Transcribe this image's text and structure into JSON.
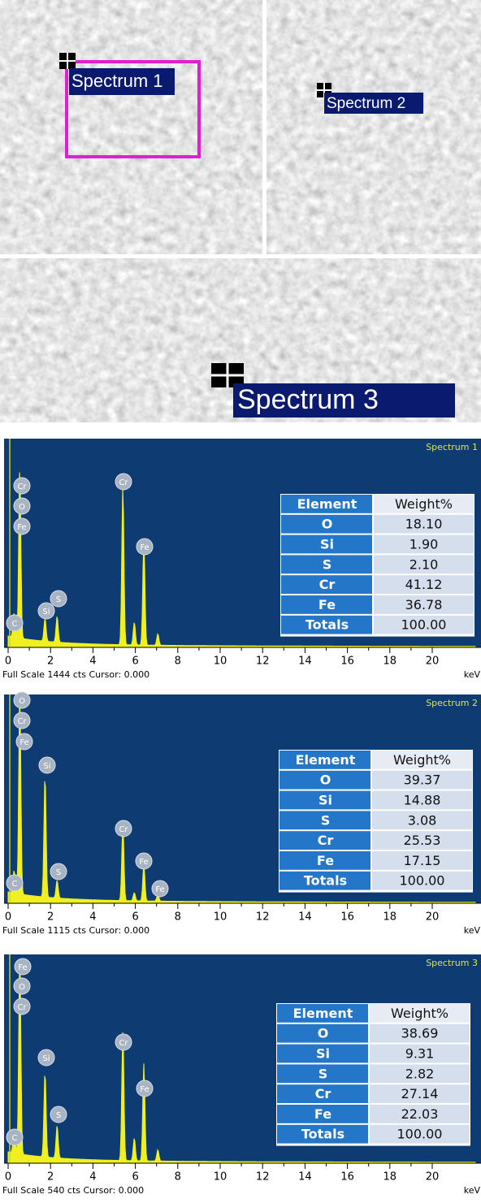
{
  "sem": {
    "images": [
      {
        "label": "Spectrum 1"
      },
      {
        "label": "Spectrum 2"
      },
      {
        "label": "Spectrum 3"
      }
    ]
  },
  "spectra": [
    {
      "title": "Spectrum 1",
      "peak_labels": [
        "Cr",
        "O",
        "Fe",
        "Si",
        "S",
        "Cr",
        "Fe",
        "C"
      ],
      "table": {
        "header": [
          "Element",
          "Weight%"
        ],
        "rows": [
          [
            "O",
            "18.10"
          ],
          [
            "Si",
            "1.90"
          ],
          [
            "S",
            "2.10"
          ],
          [
            "Cr",
            "41.12"
          ],
          [
            "Fe",
            "36.78"
          ],
          [
            "Totals",
            "100.00"
          ]
        ]
      },
      "x_ticks": [
        0,
        2,
        4,
        6,
        8,
        10,
        12,
        14,
        16,
        18,
        20
      ],
      "x_unit": "keV",
      "footer": "Full Scale 1444 cts Cursor: 0.000"
    },
    {
      "title": "Spectrum 2",
      "peak_labels": [
        "O",
        "Cr",
        "Fe",
        "Si",
        "S",
        "Cr",
        "Fe",
        "Fe",
        "C"
      ],
      "table": {
        "header": [
          "Element",
          "Weight%"
        ],
        "rows": [
          [
            "O",
            "39.37"
          ],
          [
            "Si",
            "14.88"
          ],
          [
            "S",
            "3.08"
          ],
          [
            "Cr",
            "25.53"
          ],
          [
            "Fe",
            "17.15"
          ],
          [
            "Totals",
            "100.00"
          ]
        ]
      },
      "x_ticks": [
        0,
        2,
        4,
        6,
        8,
        10,
        12,
        14,
        16,
        18,
        20
      ],
      "x_unit": "keV",
      "footer": "Full Scale 1115 cts Cursor: 0.000"
    },
    {
      "title": "Spectrum 3",
      "peak_labels": [
        "Fe",
        "O",
        "Cr",
        "Si",
        "S",
        "Cr",
        "Fe",
        "C"
      ],
      "table": {
        "header": [
          "Element",
          "Weight%"
        ],
        "rows": [
          [
            "O",
            "38.69"
          ],
          [
            "Si",
            "9.31"
          ],
          [
            "S",
            "2.82"
          ],
          [
            "Cr",
            "27.14"
          ],
          [
            "Fe",
            "22.03"
          ],
          [
            "Totals",
            "100.00"
          ]
        ]
      },
      "x_ticks": [
        0,
        2,
        4,
        6,
        8,
        10,
        12,
        14,
        16,
        18,
        20
      ],
      "x_unit": "keV",
      "footer": "Full Scale 540 cts Cursor: 0.000"
    }
  ]
}
